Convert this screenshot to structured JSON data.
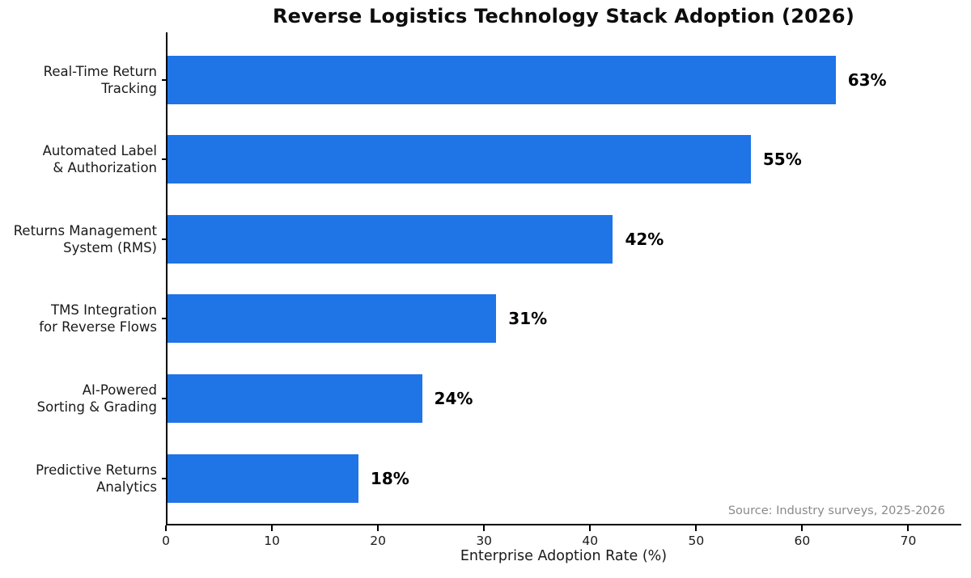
{
  "chart_data": {
    "type": "bar",
    "orientation": "horizontal",
    "title": "Reverse Logistics Technology Stack Adoption (2026)",
    "xlabel": "Enterprise Adoption Rate (%)",
    "ylabel": "",
    "source_note": "Source: Industry surveys, 2025-2026",
    "categories": [
      "Real-Time Return Tracking",
      "Automated Label & Authorization",
      "Returns Management System (RMS)",
      "TMS Integration for Reverse Flows",
      "AI-Powered Sorting & Grading",
      "Predictive Returns Analytics"
    ],
    "category_lines": [
      [
        "Real-Time Return",
        "Tracking"
      ],
      [
        "Automated Label",
        "& Authorization"
      ],
      [
        "Returns Management",
        "System (RMS)"
      ],
      [
        "TMS Integration",
        "for Reverse Flows"
      ],
      [
        "AI-Powered",
        "Sorting & Grading"
      ],
      [
        "Predictive Returns",
        "Analytics"
      ]
    ],
    "values": [
      63,
      55,
      42,
      31,
      24,
      18
    ],
    "value_labels": [
      "63%",
      "55%",
      "42%",
      "31%",
      "24%",
      "18%"
    ],
    "xlim": [
      0,
      75
    ],
    "x_ticks": [
      0,
      10,
      20,
      30,
      40,
      50,
      60,
      70
    ],
    "grid": false,
    "legend": "none",
    "bar_color": "#1f74e6",
    "value_label_color": "#000000",
    "axis_color": "#000000",
    "source_color": "#8a8a8a"
  }
}
